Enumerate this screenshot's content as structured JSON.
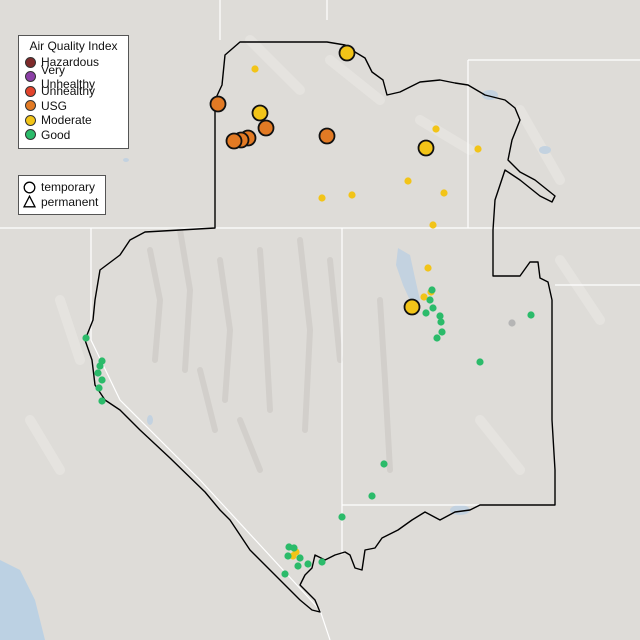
{
  "legend": {
    "title": "Air Quality Index",
    "categories": [
      {
        "label": "Hazardous",
        "color": "#7e2a2a"
      },
      {
        "label": "Very Unhealthy",
        "color": "#8b3fa6"
      },
      {
        "label": "Unhealthy",
        "color": "#e2432c"
      },
      {
        "label": "USG",
        "color": "#e27a24"
      },
      {
        "label": "Moderate",
        "color": "#f2c418"
      },
      {
        "label": "Good",
        "color": "#2bbb6a"
      }
    ]
  },
  "type_legend": {
    "temporary": "temporary",
    "permanent": "permanent"
  },
  "colors": {
    "land": "#dedcd8",
    "water": "#c3d2e0",
    "ocean": "#bcd1e3",
    "boundary": "#000000",
    "state_line": "#ffffff",
    "no_data": "#b5b5b5"
  },
  "icons": [
    "circle-icon",
    "triangle-icon"
  ]
}
